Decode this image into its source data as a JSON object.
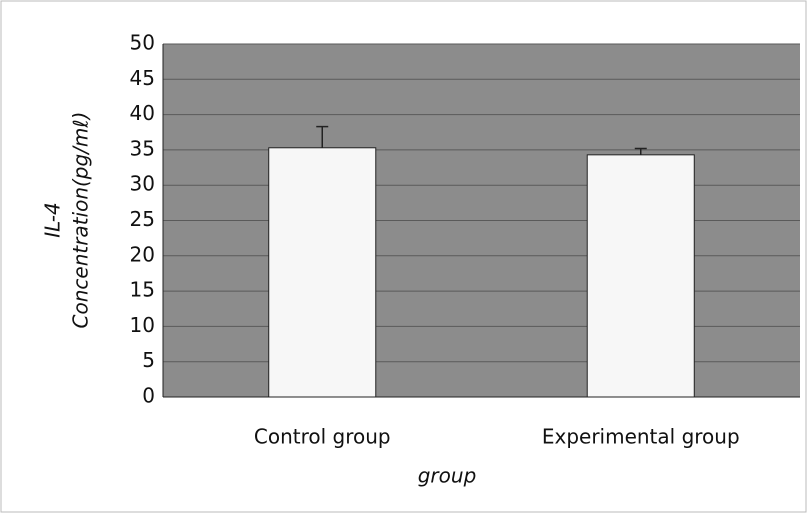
{
  "chart_data": {
    "type": "bar",
    "categories": [
      "Control group",
      "Experimental group"
    ],
    "values": [
      35.3,
      34.3
    ],
    "errors": [
      3.0,
      0.9
    ],
    "color": "#f7f7f7",
    "plot_background": "#8c8c8c",
    "ylabel": [
      "IL-4",
      "Concentration(pg/mℓ)"
    ],
    "xlabel": "group",
    "ylim": [
      0,
      50
    ],
    "yticks": [
      0,
      5,
      10,
      15,
      20,
      25,
      30,
      35,
      40,
      45,
      50
    ],
    "grid": true
  }
}
